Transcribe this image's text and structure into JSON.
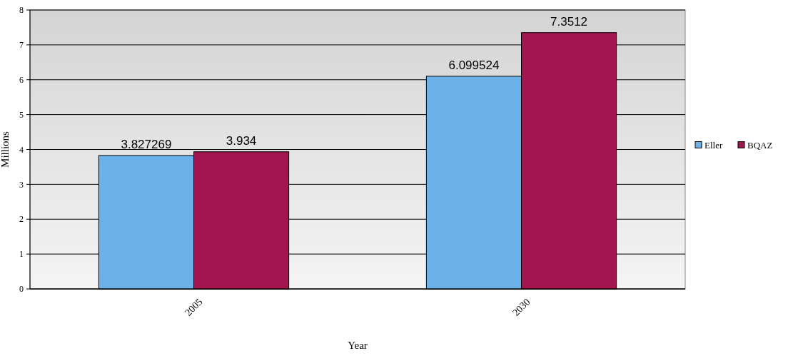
{
  "chart_data": {
    "type": "bar",
    "xlabel": "Year",
    "ylabel": "Millions",
    "categories": [
      "2005",
      "2030"
    ],
    "series": [
      {
        "name": "Eller",
        "color": "#6cb2ea",
        "values": [
          3.827269,
          6.099524
        ]
      },
      {
        "name": "BQAZ",
        "color": "#a3154f",
        "values": [
          3.934,
          7.3512
        ]
      }
    ],
    "ylim": [
      0,
      8
    ],
    "yticks": [
      0,
      1,
      2,
      3,
      4,
      5,
      6,
      7,
      8
    ],
    "grid": "y",
    "legend": "right",
    "data_labels": true
  }
}
